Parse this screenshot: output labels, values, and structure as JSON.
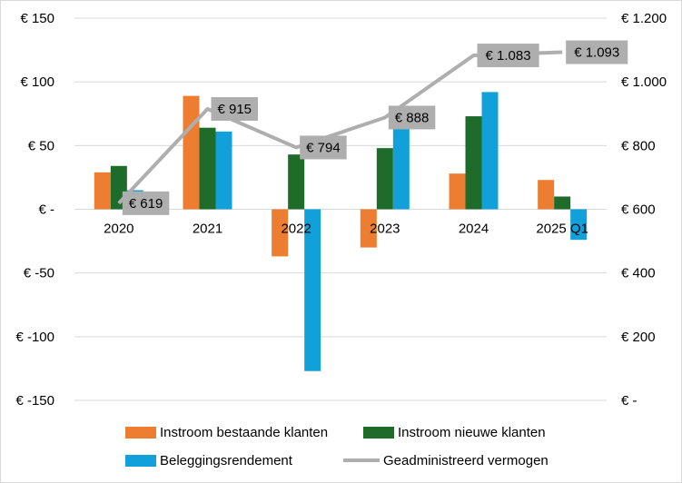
{
  "colors": {
    "instroom_bestaand": "#ED7D31",
    "instroom_nieuw": "#1E6B2A",
    "beleggingsrendement": "#11A0DA",
    "vermogen": "#AEAEAE",
    "label_box": "#AEAEAE",
    "grid": "#D9D9D9"
  },
  "chart_data": {
    "type": "bar",
    "categories": [
      "2020",
      "2021",
      "2022",
      "2023",
      "2024",
      "2025 Q1"
    ],
    "series": [
      {
        "name": "Instroom bestaande klanten",
        "type": "bar",
        "axis": "left",
        "values": [
          29,
          89,
          -37,
          -30,
          28,
          23
        ]
      },
      {
        "name": "Instroom nieuwe klanten",
        "type": "bar",
        "axis": "left",
        "values": [
          34,
          64,
          43,
          48,
          73,
          10
        ]
      },
      {
        "name": "Beleggingsrendement",
        "type": "bar",
        "axis": "left",
        "values": [
          15,
          61,
          -127,
          63,
          92,
          -24
        ]
      },
      {
        "name": "Geadministreerd vermogen",
        "type": "line",
        "axis": "right",
        "values": [
          619,
          915,
          794,
          888,
          1083,
          1093
        ],
        "data_labels": [
          "€ 619",
          "€ 915",
          "€ 794",
          "€ 888",
          "€ 1.083",
          "€ 1.093"
        ]
      }
    ],
    "left_axis": {
      "ylim": [
        -150,
        150
      ],
      "ticks": [
        150,
        100,
        50,
        0,
        -50,
        -100,
        -150
      ],
      "tick_labels": [
        "€ 150",
        "€ 100",
        "€ 50",
        "€ -",
        "€ -50",
        "€ -100",
        "€ -150"
      ]
    },
    "right_axis": {
      "ylim": [
        0,
        1200
      ],
      "ticks": [
        1200,
        1000,
        800,
        600,
        400,
        200,
        0
      ],
      "tick_labels": [
        "€ 1.200",
        "€ 1.000",
        "€ 800",
        "€ 600",
        "€ 400",
        "€ 200",
        "€ -"
      ]
    },
    "grid": true,
    "legend_position": "bottom",
    "title": "",
    "xlabel": "",
    "ylabel": ""
  },
  "legend": {
    "items": [
      {
        "label": "Instroom bestaande klanten",
        "kind": "bar",
        "series": 0
      },
      {
        "label": "Instroom nieuwe klanten",
        "kind": "bar",
        "series": 1
      },
      {
        "label": "Beleggingsrendement",
        "kind": "bar",
        "series": 2
      },
      {
        "label": "Geadministreerd vermogen",
        "kind": "line",
        "series": 3
      }
    ]
  }
}
